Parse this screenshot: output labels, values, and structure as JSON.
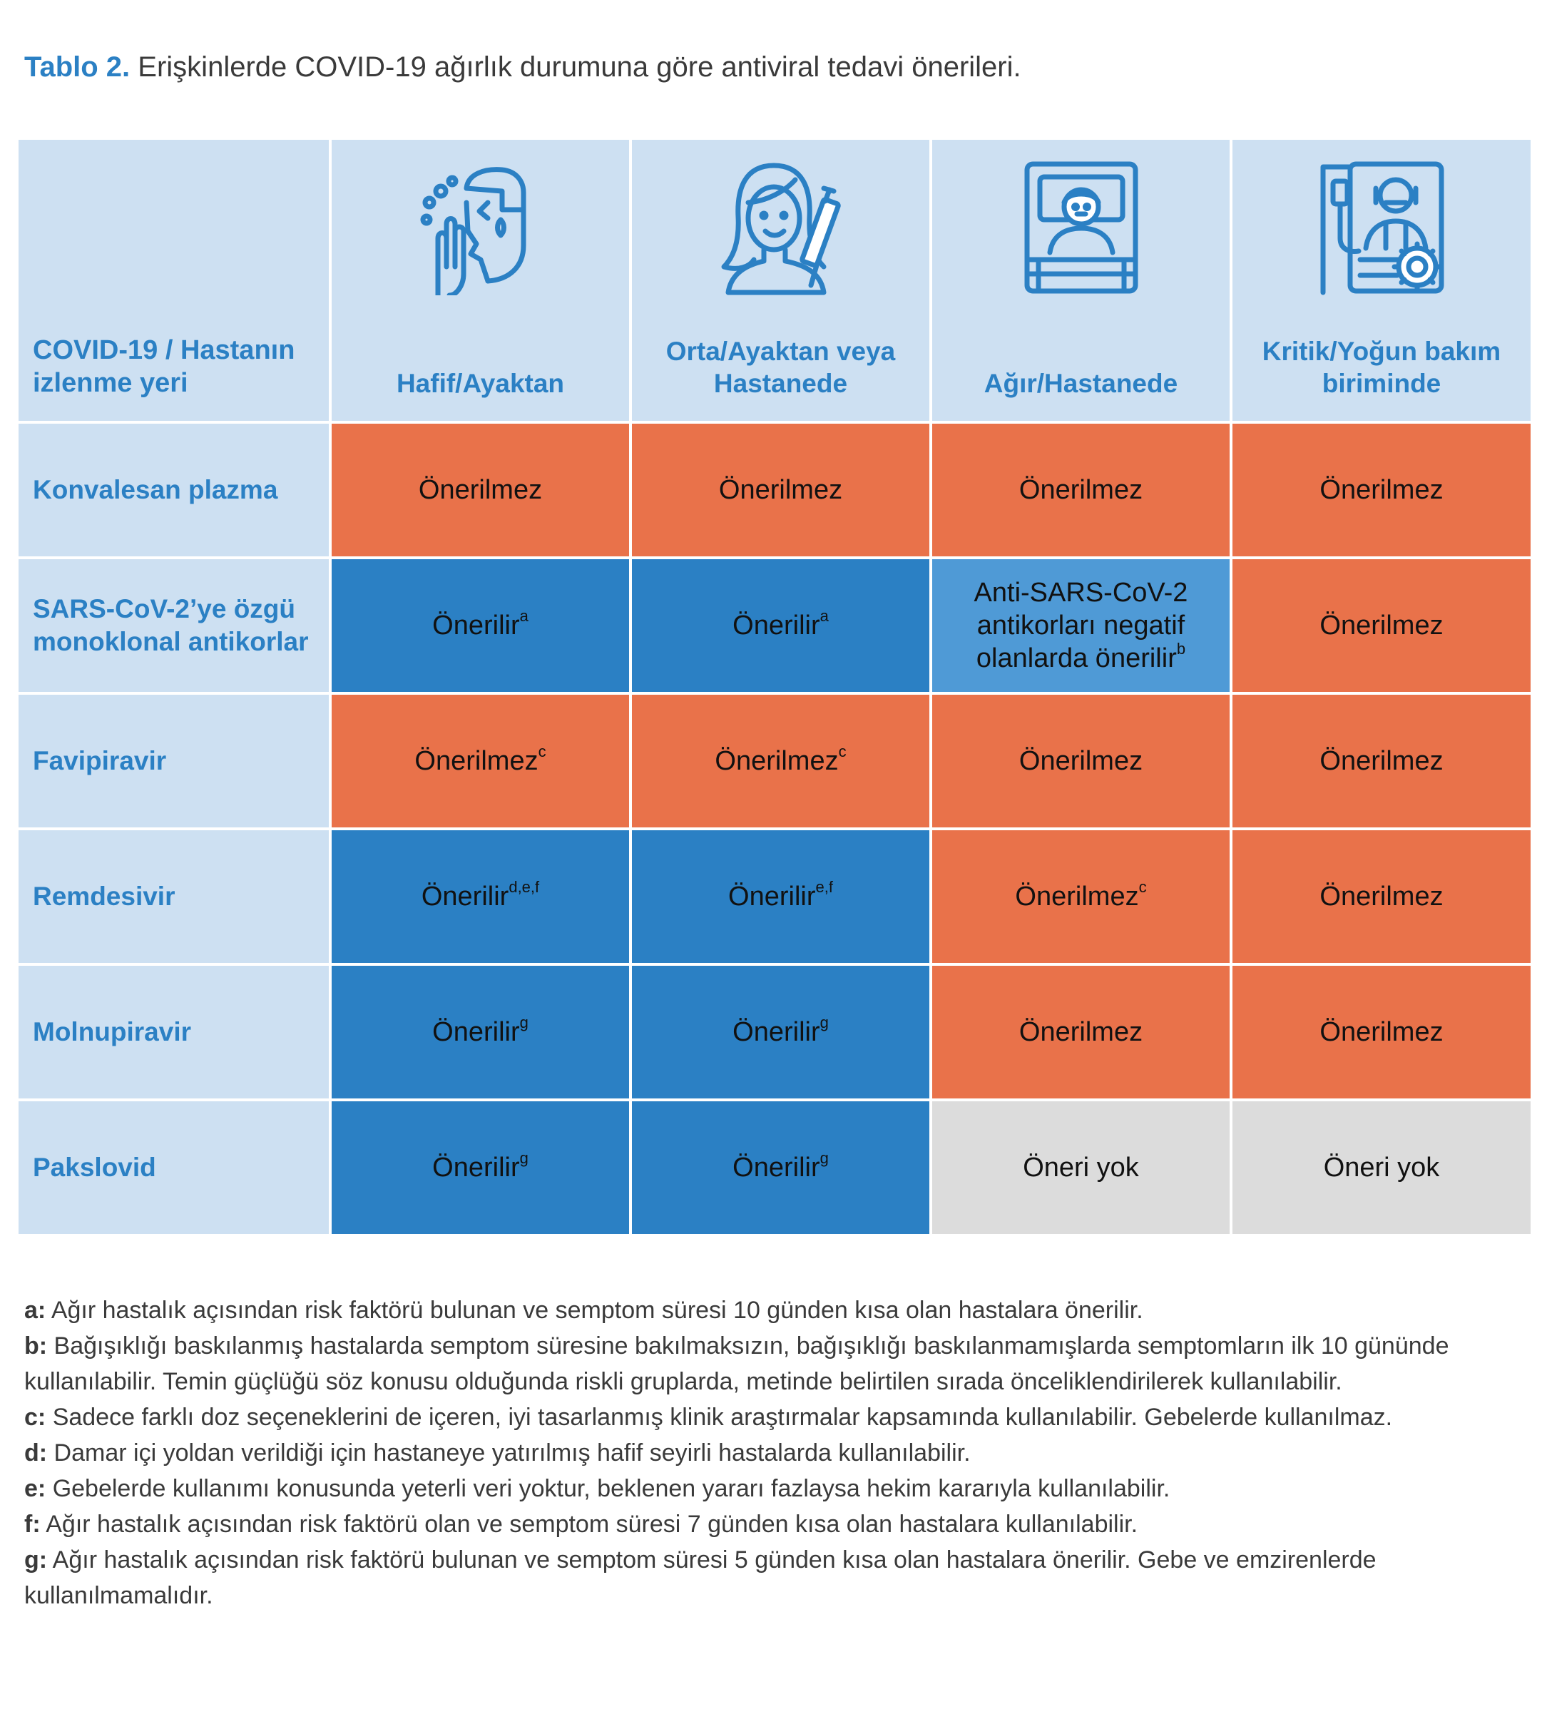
{
  "caption": {
    "label": "Tablo 2.",
    "text": "Erişkinlerde COVID-19 ağırlık durumuna göre antiviral tedavi önerileri."
  },
  "colors": {
    "header_bg": "#cde0f2",
    "accent_blue": "#2b80c4",
    "recommended": "#2b80c4",
    "not_recommended": "#e9724a",
    "conditional": "#4f9ad6",
    "no_recommendation": "#dcdcdc"
  },
  "table": {
    "corner_header": "COVID-19 / Hastanın izlenme yeri",
    "columns": [
      {
        "label": "Hafif/Ayaktan",
        "icon": "sneezing-person-icon"
      },
      {
        "label": "Orta/Ayaktan veya Hastanede",
        "icon": "woman-with-syringe-icon"
      },
      {
        "label": "Ağır/Hastanede",
        "icon": "patient-in-bed-icon"
      },
      {
        "label": "Kritik/Yoğun bakım biriminde",
        "icon": "patient-with-iv-and-virus-icon"
      }
    ],
    "rows": [
      {
        "label": "Konvalesan plazma",
        "cells": [
          {
            "text": "Önerilmez",
            "sup": "",
            "status": "not_recommended"
          },
          {
            "text": "Önerilmez",
            "sup": "",
            "status": "not_recommended"
          },
          {
            "text": "Önerilmez",
            "sup": "",
            "status": "not_recommended"
          },
          {
            "text": "Önerilmez",
            "sup": "",
            "status": "not_recommended"
          }
        ]
      },
      {
        "label": "SARS-CoV-2’ye özgü monoklonal antikorlar",
        "cells": [
          {
            "text": "Önerilir",
            "sup": "a",
            "status": "recommended"
          },
          {
            "text": "Önerilir",
            "sup": "a",
            "status": "recommended"
          },
          {
            "text": "Anti-SARS-CoV-2 antikorları negatif olanlarda önerilir",
            "sup": "b",
            "status": "conditional"
          },
          {
            "text": "Önerilmez",
            "sup": "",
            "status": "not_recommended"
          }
        ]
      },
      {
        "label": "Favipiravir",
        "cells": [
          {
            "text": "Önerilmez",
            "sup": "c",
            "status": "not_recommended"
          },
          {
            "text": "Önerilmez",
            "sup": "c",
            "status": "not_recommended"
          },
          {
            "text": "Önerilmez",
            "sup": "",
            "status": "not_recommended"
          },
          {
            "text": "Önerilmez",
            "sup": "",
            "status": "not_recommended"
          }
        ]
      },
      {
        "label": "Remdesivir",
        "cells": [
          {
            "text": "Önerilir",
            "sup": "d,e,f",
            "status": "recommended"
          },
          {
            "text": "Önerilir",
            "sup": "e,f",
            "status": "recommended"
          },
          {
            "text": "Önerilmez",
            "sup": "c",
            "status": "not_recommended"
          },
          {
            "text": "Önerilmez",
            "sup": "",
            "status": "not_recommended"
          }
        ]
      },
      {
        "label": "Molnupiravir",
        "cells": [
          {
            "text": "Önerilir",
            "sup": "g",
            "status": "recommended"
          },
          {
            "text": "Önerilir",
            "sup": "g",
            "status": "recommended"
          },
          {
            "text": "Önerilmez",
            "sup": "",
            "status": "not_recommended"
          },
          {
            "text": "Önerilmez",
            "sup": "",
            "status": "not_recommended"
          }
        ]
      },
      {
        "label": "Pakslovid",
        "cells": [
          {
            "text": "Önerilir",
            "sup": "g",
            "status": "recommended"
          },
          {
            "text": "Önerilir",
            "sup": "g",
            "status": "recommended"
          },
          {
            "text": "Öneri yok",
            "sup": "",
            "status": "no_recommendation"
          },
          {
            "text": "Öneri yok",
            "sup": "",
            "status": "no_recommendation"
          }
        ]
      }
    ]
  },
  "footnotes": [
    {
      "key": "a:",
      "text": "Ağır hastalık açısından risk faktörü bulunan ve semptom süresi 10 günden kısa olan hastalara önerilir."
    },
    {
      "key": "b:",
      "text": "Bağışıklığı baskılanmış hastalarda semptom süresine bakılmaksızın, bağışıklığı baskılanmamışlarda semptomların ilk 10 gününde kullanılabilir. Temin güçlüğü söz konusu olduğunda riskli gruplarda, metinde belirtilen sırada önceliklendirilerek kullanılabilir."
    },
    {
      "key": "c:",
      "text": "Sadece farklı doz seçeneklerini de içeren, iyi tasarlanmış klinik araştırmalar kapsamında kullanılabilir.  Gebelerde kullanılmaz."
    },
    {
      "key": "d:",
      "text": "Damar içi yoldan verildiği için hastaneye yatırılmış hafif seyirli hastalarda kullanılabilir."
    },
    {
      "key": "e:",
      "text": "Gebelerde kullanımı konusunda yeterli veri yoktur, beklenen yararı fazlaysa hekim kararıyla kullanılabilir."
    },
    {
      "key": "f:",
      "text": "Ağır hastalık açısından risk faktörü olan ve semptom süresi 7 günden kısa olan hastalara  kullanılabilir."
    },
    {
      "key": "g:",
      "text": "Ağır hastalık açısından risk faktörü bulunan ve semptom süresi 5 günden kısa olan hastalara önerilir. Gebe ve emzirenlerde kullanılmamalıdır."
    }
  ]
}
